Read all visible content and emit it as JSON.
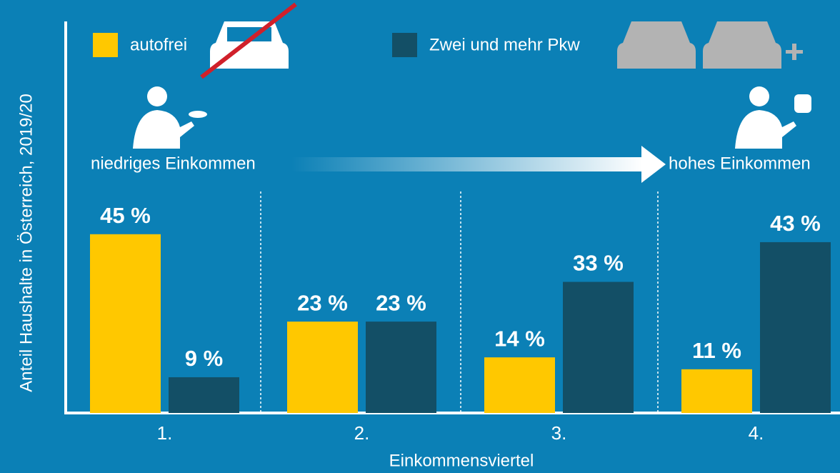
{
  "chart_data": {
    "type": "bar",
    "y_label": "Anteil Haushalte in Österreich, 2019/20",
    "x_label": "Einkommensviertel",
    "annotations": [
      "niedriges Einkommen",
      "hohes Einkommen"
    ],
    "categories": [
      "1.",
      "2.",
      "3.",
      "4."
    ],
    "series": [
      {
        "name": "autofrei",
        "color": "#ffc800",
        "values": [
          45,
          23,
          14,
          11
        ],
        "value_labels": [
          "45 %",
          "23 %",
          "14 %",
          "11 %"
        ]
      },
      {
        "name": "Zwei und mehr Pkw",
        "color": "#134f66",
        "values": [
          9,
          23,
          33,
          43
        ],
        "value_labels": [
          "9 %",
          "23 %",
          "33 %",
          "43 %"
        ]
      }
    ],
    "ylim": [
      0,
      100
    ]
  }
}
